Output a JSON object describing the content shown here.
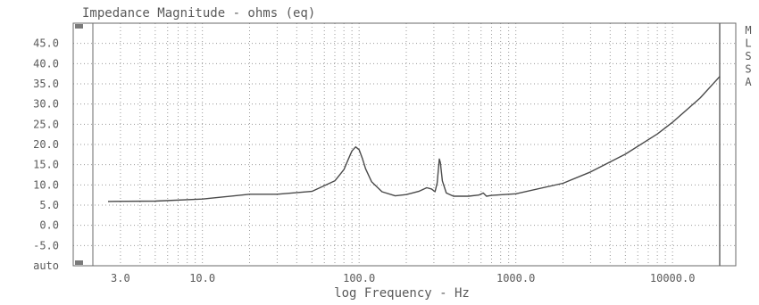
{
  "chart_data": {
    "type": "line",
    "title": "Impedance Magnitude - ohms (eq)",
    "xlabel": "log Frequency - Hz",
    "ylabel": "",
    "x_scale": "log",
    "xlim": [
      2,
      20000
    ],
    "ylim": [
      -10,
      50
    ],
    "grid": true,
    "y_tick_labels": [
      {
        "value": 45,
        "label": "45.0"
      },
      {
        "value": 40,
        "label": "40.0"
      },
      {
        "value": 35,
        "label": "35.0"
      },
      {
        "value": 30,
        "label": "30.0"
      },
      {
        "value": 25,
        "label": "25.0"
      },
      {
        "value": 20,
        "label": "20.0"
      },
      {
        "value": 15,
        "label": "15.0"
      },
      {
        "value": 10,
        "label": "10.0"
      },
      {
        "value": 5,
        "label": "5.0"
      },
      {
        "value": 0,
        "label": "0.0"
      },
      {
        "value": -5,
        "label": "-5.0"
      },
      {
        "value": -10,
        "label": "auto"
      }
    ],
    "x_tick_labels": [
      {
        "value": 3,
        "label": "3.0"
      },
      {
        "value": 10,
        "label": "10.0"
      },
      {
        "value": 100,
        "label": "100.0"
      },
      {
        "value": 1000,
        "label": "1000.0"
      },
      {
        "value": 10000,
        "label": "10000.0"
      }
    ],
    "side_labels": [
      "M",
      "L",
      "S",
      "S",
      "A"
    ],
    "series": [
      {
        "x": [
          2.5,
          5,
          10,
          20,
          30,
          50,
          70,
          80,
          85,
          90,
          95,
          100,
          105,
          110,
          120,
          140,
          170,
          200,
          240,
          270,
          290,
          305,
          315,
          320,
          325,
          330,
          340,
          360,
          400,
          500,
          580,
          620,
          650,
          700,
          1000,
          2000,
          3000,
          5000,
          8000,
          10000,
          15000,
          20000
        ],
        "y": [
          5.9,
          6.0,
          6.5,
          7.7,
          7.7,
          8.4,
          11.0,
          13.8,
          16.2,
          18.4,
          19.4,
          18.7,
          16.5,
          14.0,
          10.8,
          8.3,
          7.3,
          7.6,
          8.4,
          9.3,
          9.0,
          8.3,
          10.5,
          13.5,
          16.4,
          15.5,
          11.0,
          8.0,
          7.2,
          7.2,
          7.5,
          8.0,
          7.2,
          7.4,
          7.8,
          10.4,
          13.2,
          17.6,
          22.6,
          25.5,
          31.5,
          36.8
        ]
      }
    ]
  }
}
